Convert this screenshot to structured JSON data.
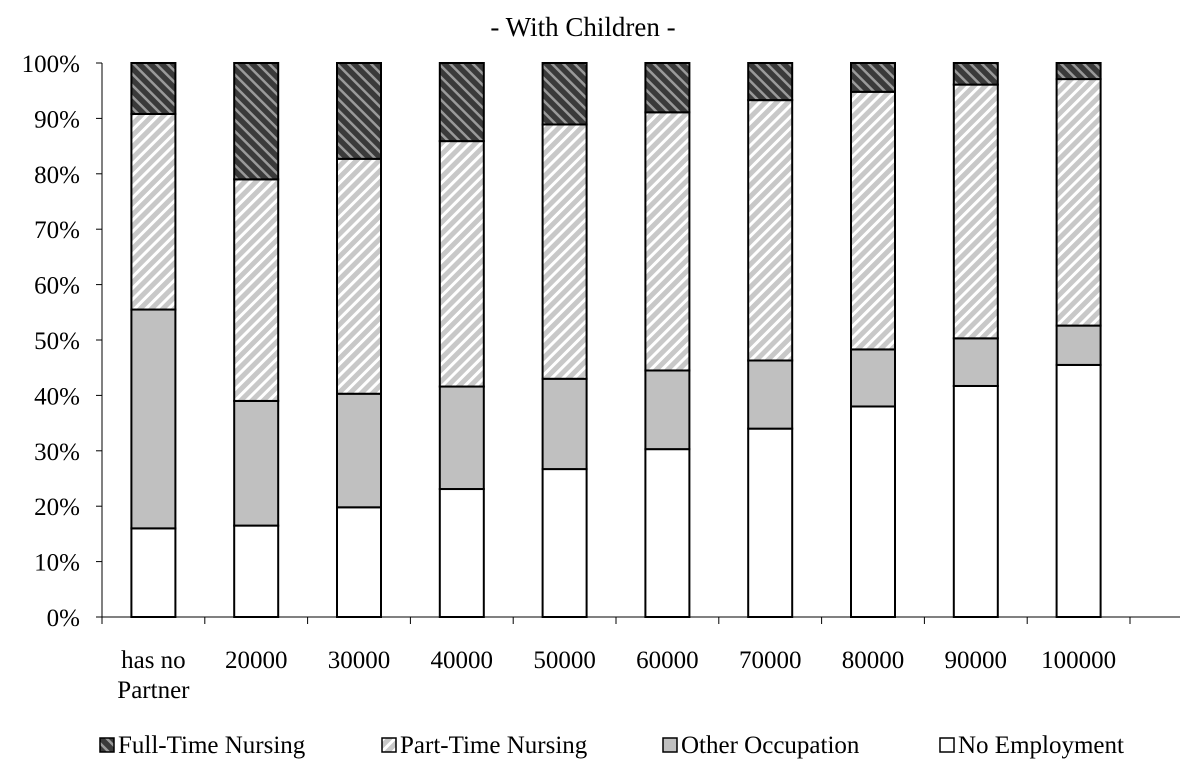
{
  "chart_data": {
    "type": "bar",
    "stacked": true,
    "percent_stacked": true,
    "title": "- With Children -",
    "xlabel": "",
    "ylabel": "",
    "ylim": [
      0,
      100
    ],
    "yticks": [
      "0%",
      "10%",
      "20%",
      "30%",
      "40%",
      "50%",
      "60%",
      "70%",
      "80%",
      "90%",
      "100%"
    ],
    "categories": [
      "has no\nPartner",
      "20000",
      "30000",
      "40000",
      "50000",
      "60000",
      "70000",
      "80000",
      "90000",
      "100000"
    ],
    "series": [
      {
        "name": "No Employment",
        "pattern": "white",
        "values": [
          16,
          16.5,
          19.8,
          23.1,
          26.7,
          30.3,
          34,
          38,
          41.7,
          45.5
        ]
      },
      {
        "name": "Other Occupation",
        "pattern": "gray",
        "values": [
          39.5,
          22.5,
          20.5,
          18.5,
          16.3,
          14.2,
          12.3,
          10.3,
          8.6,
          7.1
        ]
      },
      {
        "name": "Part-Time Nursing",
        "pattern": "light-hatch",
        "values": [
          35.3,
          40,
          42.4,
          44.3,
          45.9,
          46.6,
          47,
          46.5,
          45.8,
          44.5
        ]
      },
      {
        "name": "Full-Time Nursing",
        "pattern": "dark-hatch",
        "values": [
          9.2,
          21,
          17.3,
          14.1,
          11.1,
          8.9,
          6.7,
          5.2,
          3.9,
          2.9
        ]
      }
    ],
    "legend": {
      "position": "bottom",
      "order": [
        "Full-Time Nursing",
        "Part-Time Nursing",
        "Other Occupation",
        "No Employment"
      ]
    },
    "grid": false,
    "colors": {
      "white": "#ffffff",
      "gray": "#c0c0c0",
      "light-hatch-bg": "#c8c8c8",
      "light-hatch-line": "#ffffff",
      "dark-hatch-bg": "#3a3a3a",
      "dark-hatch-line": "#9a9a9a",
      "outline": "#000000"
    }
  }
}
